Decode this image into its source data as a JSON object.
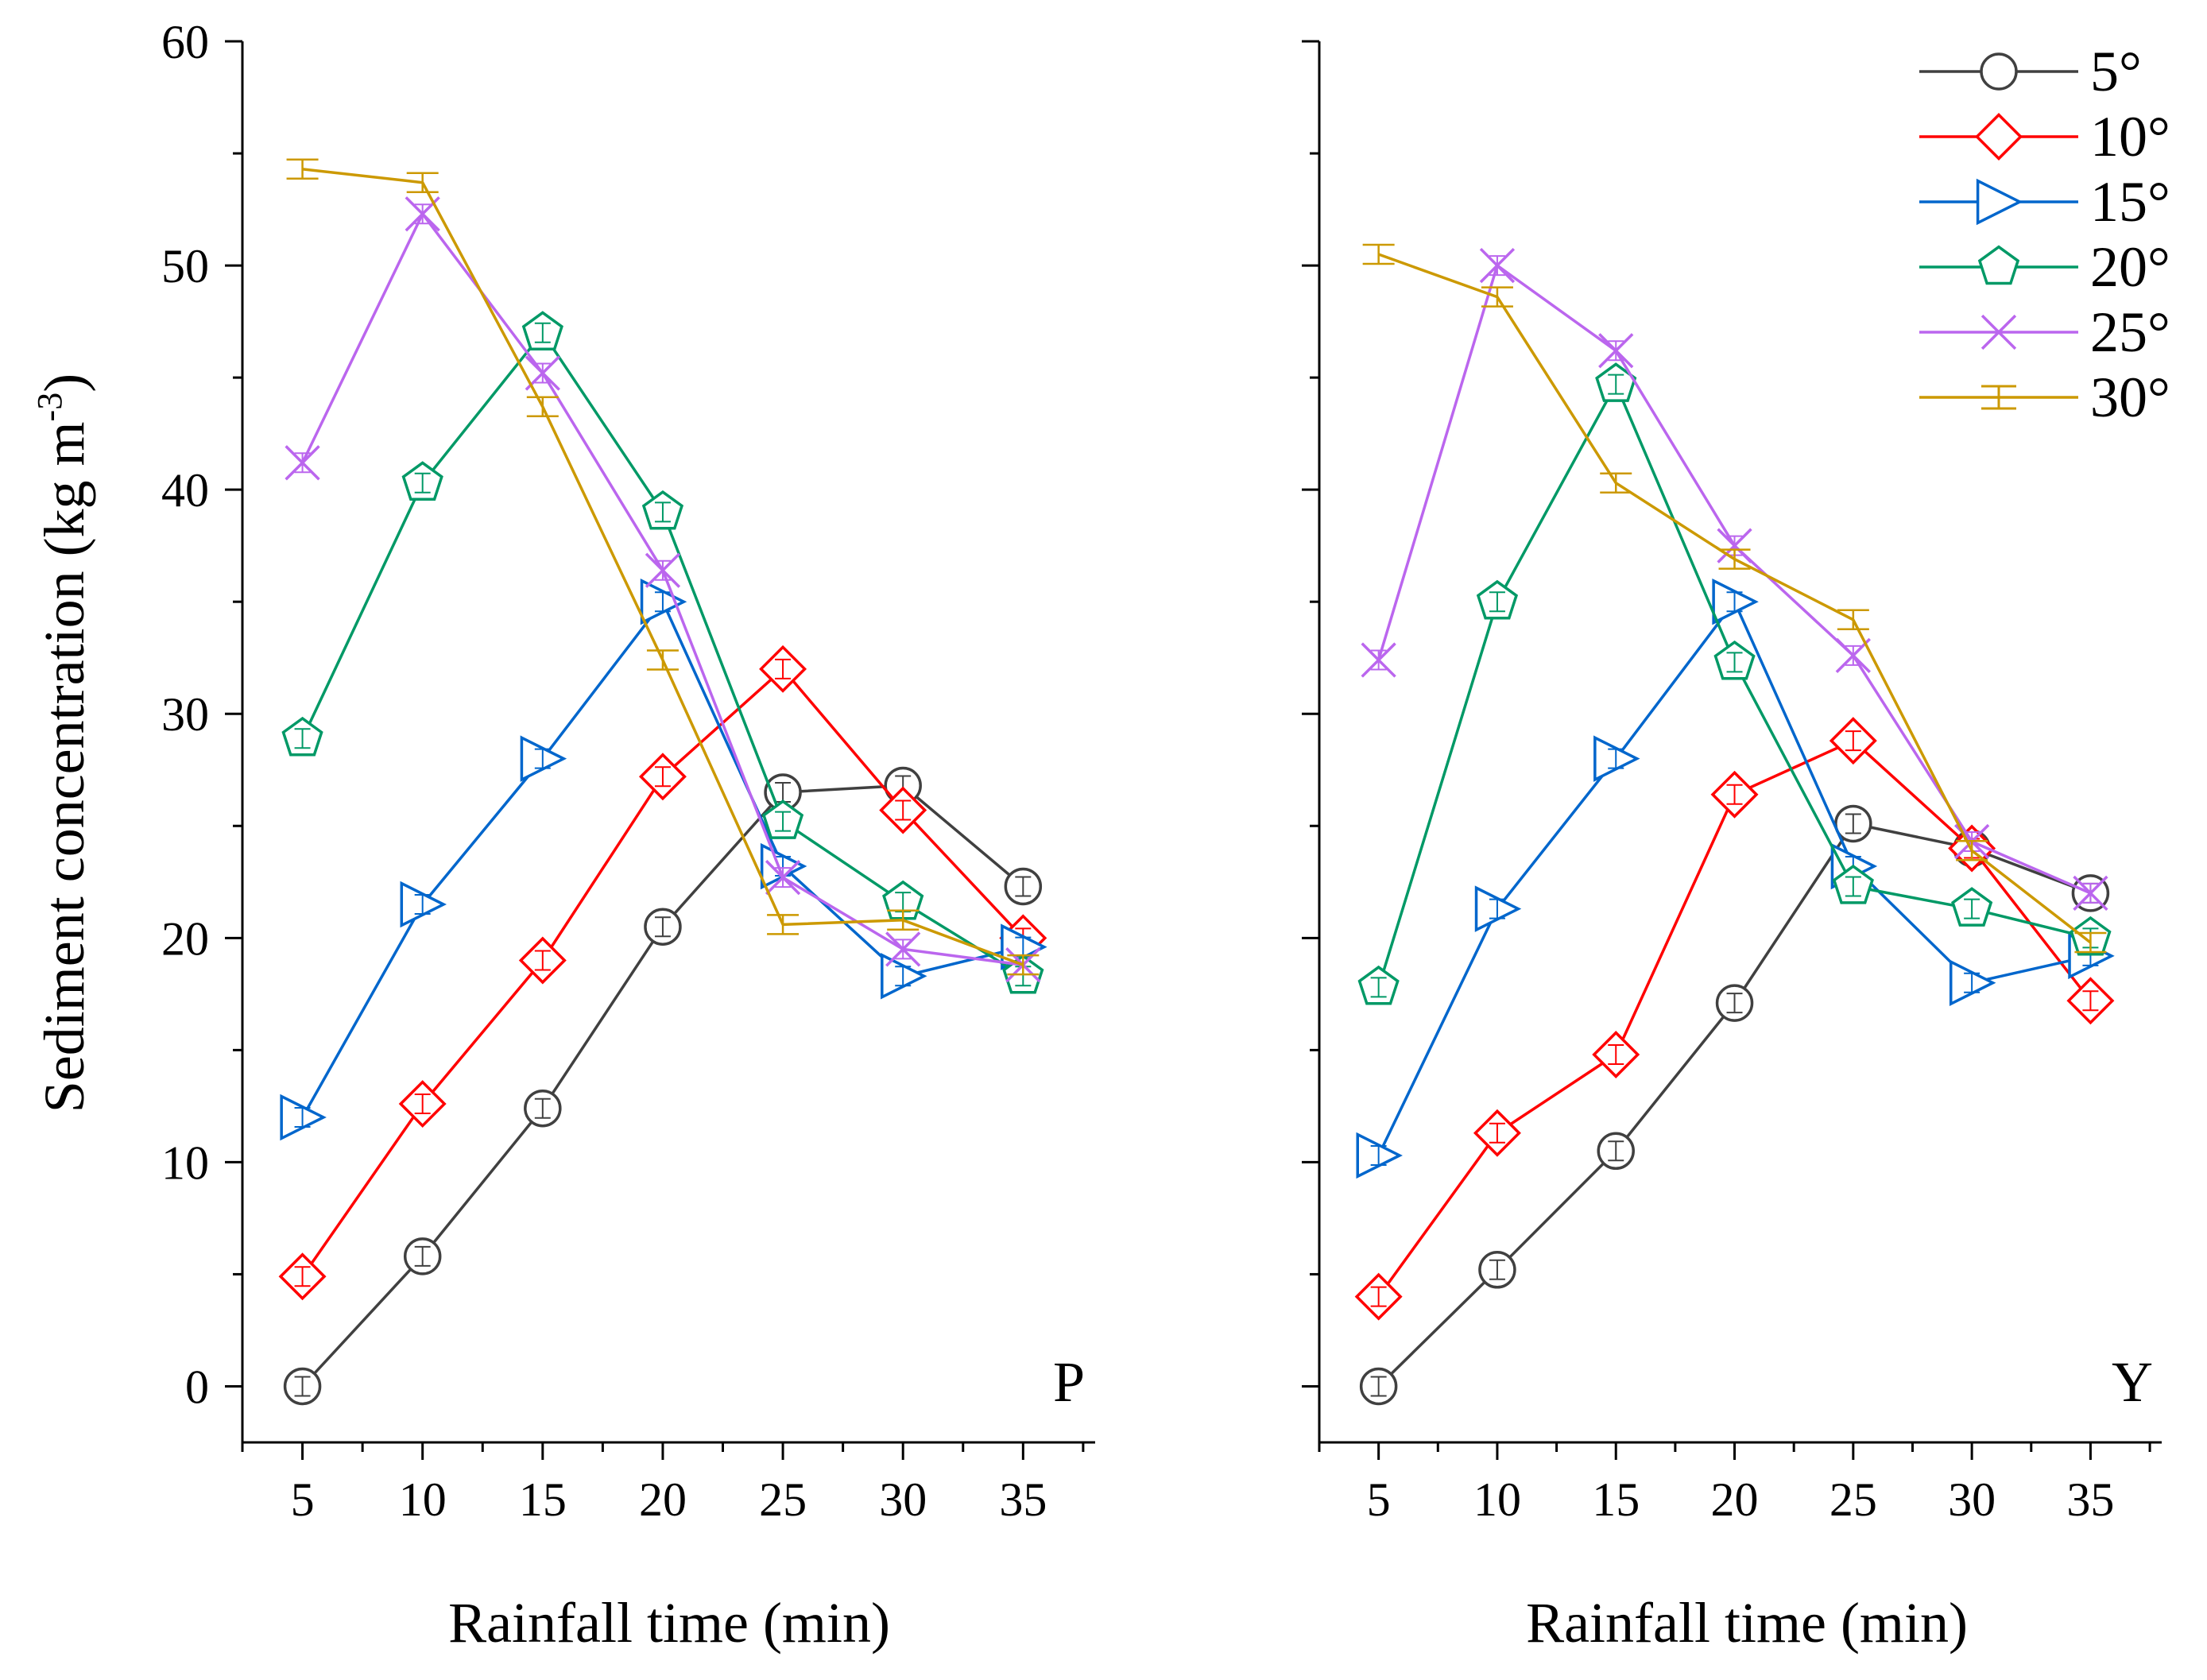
{
  "chart_data": [
    {
      "type": "line",
      "panel_label": "P",
      "xlabel": "Rainfall time (min)",
      "ylabel_main": "Sediment concentration (kg m",
      "ylabel_sup": "-3",
      "ylabel_close": ")",
      "x": [
        5,
        10,
        15,
        20,
        25,
        30,
        35
      ],
      "xlim": [
        2.5,
        38.0
      ],
      "ylim": [
        -2.5,
        60
      ],
      "yticks": [
        0,
        10,
        20,
        30,
        40,
        50,
        60
      ],
      "series": [
        {
          "name": "5°",
          "values": [
            0.0,
            5.8,
            12.4,
            20.5,
            26.5,
            26.8,
            22.3
          ]
        },
        {
          "name": "10°",
          "values": [
            4.9,
            12.6,
            19.0,
            27.2,
            32.0,
            25.7,
            20.0
          ]
        },
        {
          "name": "15°",
          "values": [
            12.0,
            21.5,
            28.0,
            35.0,
            23.2,
            18.3,
            19.6
          ]
        },
        {
          "name": "20°",
          "values": [
            28.9,
            40.3,
            47.0,
            39.0,
            25.2,
            21.6,
            18.3
          ]
        },
        {
          "name": "25°",
          "values": [
            41.2,
            52.3,
            45.2,
            36.4,
            22.7,
            19.5,
            18.8
          ]
        },
        {
          "name": "30°",
          "values": [
            54.3,
            53.7,
            43.7,
            32.4,
            20.6,
            20.8,
            18.8
          ]
        }
      ]
    },
    {
      "type": "line",
      "panel_label": "Y",
      "xlabel": "Rainfall time (min)",
      "x": [
        5,
        10,
        15,
        20,
        25,
        30,
        35
      ],
      "xlim": [
        2.5,
        38.0
      ],
      "ylim": [
        -2.5,
        60
      ],
      "yticks": [
        0,
        10,
        20,
        30,
        40,
        50,
        60
      ],
      "series": [
        {
          "name": "5°",
          "values": [
            0.0,
            5.2,
            10.5,
            17.1,
            25.1,
            24.0,
            22.0
          ]
        },
        {
          "name": "10°",
          "values": [
            4.0,
            11.3,
            14.8,
            26.4,
            28.8,
            24.0,
            17.2
          ]
        },
        {
          "name": "15°",
          "values": [
            10.3,
            21.3,
            28.0,
            35.0,
            23.2,
            18.0,
            19.2
          ]
        },
        {
          "name": "20°",
          "values": [
            17.8,
            35.0,
            44.7,
            32.3,
            22.3,
            21.3,
            20.0
          ]
        },
        {
          "name": "25°",
          "values": [
            32.4,
            50.0,
            46.2,
            37.5,
            32.6,
            24.3,
            22.0
          ]
        },
        {
          "name": "30°",
          "values": [
            50.5,
            48.6,
            40.3,
            36.9,
            34.2,
            23.9,
            19.8
          ]
        }
      ]
    }
  ],
  "legend": {
    "entries": [
      {
        "label": "5°",
        "color": "#404040",
        "marker": "circle"
      },
      {
        "label": "10°",
        "color": "#ff0000",
        "marker": "diamond"
      },
      {
        "label": "15°",
        "color": "#0066cc",
        "marker": "triangle-right"
      },
      {
        "label": "20°",
        "color": "#009966",
        "marker": "pentagon"
      },
      {
        "label": "25°",
        "color": "#bb66ee",
        "marker": "x-cross"
      },
      {
        "label": "30°",
        "color": "#cc9900",
        "marker": "error-bar"
      }
    ]
  }
}
